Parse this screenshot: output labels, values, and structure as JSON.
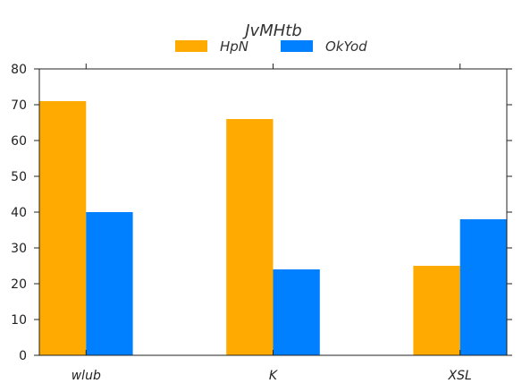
{
  "chart_data": {
    "type": "bar",
    "title": "JvMHtb",
    "xlabel": "",
    "ylabel": "",
    "categories": [
      "wlub",
      "K",
      "XSL"
    ],
    "series": [
      {
        "name": "HpN",
        "color": "#FFAA00",
        "values": [
          71,
          66,
          25
        ]
      },
      {
        "name": "OkYod",
        "color": "#0080FF",
        "values": [
          40,
          24,
          38
        ]
      }
    ],
    "ylim": [
      0,
      80
    ],
    "yticks": [
      0,
      10,
      20,
      30,
      40,
      50,
      60,
      70,
      80
    ],
    "ytick_labels": [
      "0",
      "10",
      "20",
      "30",
      "40",
      "50",
      "60",
      "70",
      "80"
    ],
    "grid": false,
    "legend_position": "top-center"
  }
}
